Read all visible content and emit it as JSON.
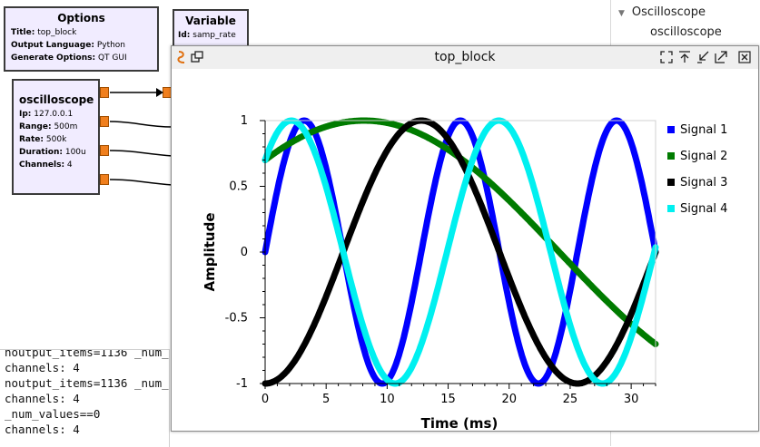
{
  "options_block": {
    "title": "Options",
    "params": [
      {
        "key": "Title:",
        "value": "top_block"
      },
      {
        "key": "Output Language:",
        "value": "Python"
      },
      {
        "key": "Generate Options:",
        "value": "QT GUI"
      }
    ]
  },
  "variable_block": {
    "title": "Variable",
    "params": [
      {
        "key": "Id:",
        "value": "samp_rate"
      }
    ]
  },
  "oscilloscope_block": {
    "title": "oscilloscope",
    "params": [
      {
        "key": "Ip:",
        "value": "127.0.0.1"
      },
      {
        "key": "Range:",
        "value": "500m"
      },
      {
        "key": "Rate:",
        "value": "500k"
      },
      {
        "key": "Duration:",
        "value": "100u"
      },
      {
        "key": "Channels:",
        "value": "4"
      }
    ]
  },
  "block_tree": {
    "category": "Oscilloscope",
    "item": "oscilloscope",
    "expander_icon": "triangle-down-icon"
  },
  "console": {
    "lines": [
      "noutput_items=1136 _num_",
      "channels: 4",
      "noutput_items=1136 _num_",
      "channels: 4",
      "_num_values==0",
      "channels: 4"
    ]
  },
  "plot_window": {
    "title": "top_block",
    "app_icon": "gnuradio-icon",
    "buttons": [
      "fullscreen-icon",
      "keep-above-icon",
      "minimize-icon",
      "maximize-icon",
      "close-icon"
    ]
  },
  "chart_data": {
    "type": "line",
    "title": "",
    "xlabel": "Time (ms)",
    "ylabel": "Amplitude",
    "xlim": [
      0,
      32
    ],
    "ylim": [
      -1,
      1
    ],
    "x_ticks": [
      0,
      5,
      10,
      15,
      20,
      25,
      30
    ],
    "y_ticks": [
      1,
      0.5,
      0,
      -0.5,
      -1
    ],
    "y_tick_labels": [
      "1",
      "0.5",
      "0",
      "-0.5",
      "-1"
    ],
    "grid": false,
    "legend_position": "right",
    "series": [
      {
        "name": "Signal 1",
        "color": "#0000ff",
        "amplitude": 1,
        "period_ms": 12.8,
        "phase_at_zero": 0.0,
        "x_range": [
          0,
          32
        ]
      },
      {
        "name": "Signal 2",
        "color": "#007b00",
        "amplitude": 1,
        "period_ms": 64.0,
        "phase_at_zero": 0.7,
        "x_range": [
          0,
          32
        ]
      },
      {
        "name": "Signal 3",
        "color": "#000000",
        "amplitude": 1,
        "period_ms": 25.6,
        "phase_at_zero": -1.0,
        "x_range": [
          0,
          32
        ]
      },
      {
        "name": "Signal 4",
        "color": "#00f0f0",
        "amplitude": 1,
        "period_ms": 17.0,
        "phase_at_zero": 0.7,
        "x_range": [
          0,
          32
        ]
      }
    ]
  }
}
